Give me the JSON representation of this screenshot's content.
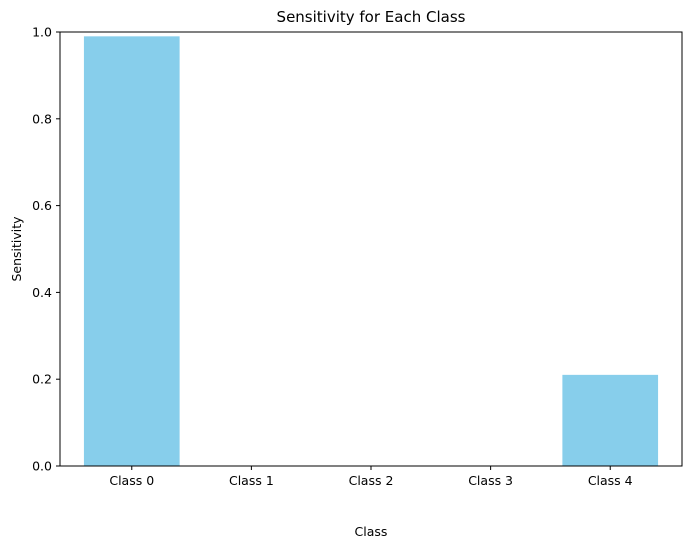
{
  "chart_data": {
    "type": "bar",
    "title": "Sensitivity for Each Class",
    "xlabel": "Class",
    "ylabel": "Sensitivity",
    "categories": [
      "Class 0",
      "Class 1",
      "Class 2",
      "Class 3",
      "Class 4"
    ],
    "values": [
      0.99,
      0.0,
      0.0,
      0.0,
      0.21
    ],
    "ylim": [
      0,
      1.0
    ],
    "yticks": [
      "0.0",
      "0.2",
      "0.4",
      "0.6",
      "0.8",
      "1.0"
    ],
    "bar_color": "#87ceeb",
    "grid": false,
    "legend": false
  }
}
